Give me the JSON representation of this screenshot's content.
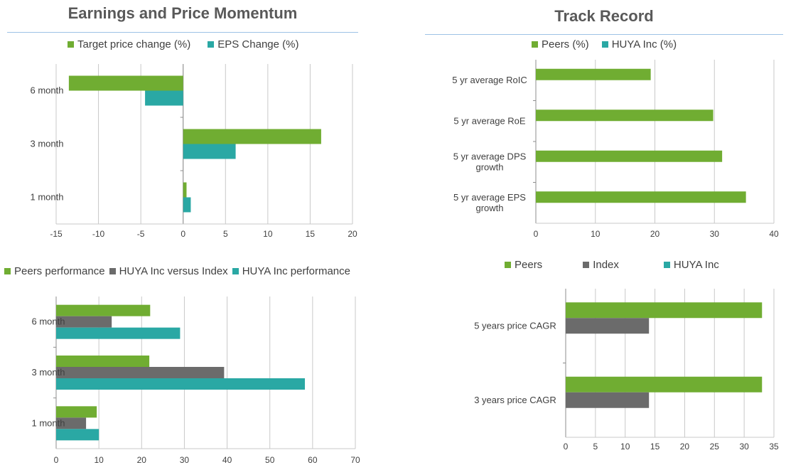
{
  "colors": {
    "green": "#70ad32",
    "teal": "#2aa8a4",
    "gray": "#6b6b6b",
    "grid": "#c8c8c8",
    "axis": "#8c8c8c",
    "rule": "#9dc3e6"
  },
  "titles": {
    "left": "Earnings and Price Momentum",
    "right": "Track Record"
  },
  "chart_data": [
    {
      "id": "momentum",
      "type": "bar",
      "orientation": "horizontal",
      "categories": [
        "6 month",
        "3 month",
        "1 month"
      ],
      "series": [
        {
          "name": "Target price change (%)",
          "color": "#70ad32",
          "values": [
            -13.5,
            16.3,
            0.4
          ]
        },
        {
          "name": "EPS Change (%)",
          "color": "#2aa8a4",
          "values": [
            -4.5,
            6.2,
            0.9
          ]
        }
      ],
      "xlim": [
        -15,
        20
      ],
      "ticks": [
        -15,
        -10,
        -5,
        0,
        5,
        10,
        15,
        20
      ],
      "grid": true,
      "legend": "top"
    },
    {
      "id": "performance",
      "type": "bar",
      "orientation": "horizontal",
      "categories": [
        "6 month",
        "3 month",
        "1 month"
      ],
      "series": [
        {
          "name": "Peers performance",
          "color": "#70ad32",
          "values": [
            22,
            21.8,
            9.5
          ]
        },
        {
          "name": "HUYA Inc versus Index",
          "color": "#6b6b6b",
          "values": [
            13,
            39.3,
            7
          ]
        },
        {
          "name": "HUYA Inc performance",
          "color": "#2aa8a4",
          "values": [
            29,
            58.2,
            10
          ]
        }
      ],
      "xlim": [
        0,
        70
      ],
      "ticks": [
        0,
        10,
        20,
        30,
        40,
        50,
        60,
        70
      ],
      "grid": true,
      "legend": "top"
    },
    {
      "id": "track",
      "type": "bar",
      "orientation": "horizontal",
      "categories": [
        [
          "5 yr average RoIC"
        ],
        [
          "5 yr average RoE"
        ],
        [
          "5 yr average DPS",
          "growth"
        ],
        [
          "5 yr average EPS",
          "growth"
        ]
      ],
      "series": [
        {
          "name": "Peers (%)",
          "color": "#70ad32",
          "values": [
            19.3,
            29.8,
            31.3,
            35.3
          ]
        },
        {
          "name": "HUYA Inc (%)",
          "color": "#2aa8a4",
          "values": [
            0,
            0,
            0,
            0
          ]
        }
      ],
      "xlim": [
        0,
        40
      ],
      "ticks": [
        0,
        10,
        20,
        30,
        40
      ],
      "grid": true,
      "legend": "top"
    },
    {
      "id": "cagr",
      "type": "bar",
      "orientation": "horizontal",
      "categories": [
        "5 years price CAGR",
        "3 years price CAGR"
      ],
      "series": [
        {
          "name": "Peers",
          "color": "#70ad32",
          "values": [
            33,
            33
          ]
        },
        {
          "name": "Index",
          "color": "#6b6b6b",
          "values": [
            14,
            14
          ]
        },
        {
          "name": "HUYA Inc",
          "color": "#2aa8a4",
          "values": [
            0,
            0
          ]
        }
      ],
      "xlim": [
        0,
        35
      ],
      "ticks": [
        0,
        5,
        10,
        15,
        20,
        25,
        30,
        35
      ],
      "grid": true,
      "legend": "top"
    }
  ]
}
